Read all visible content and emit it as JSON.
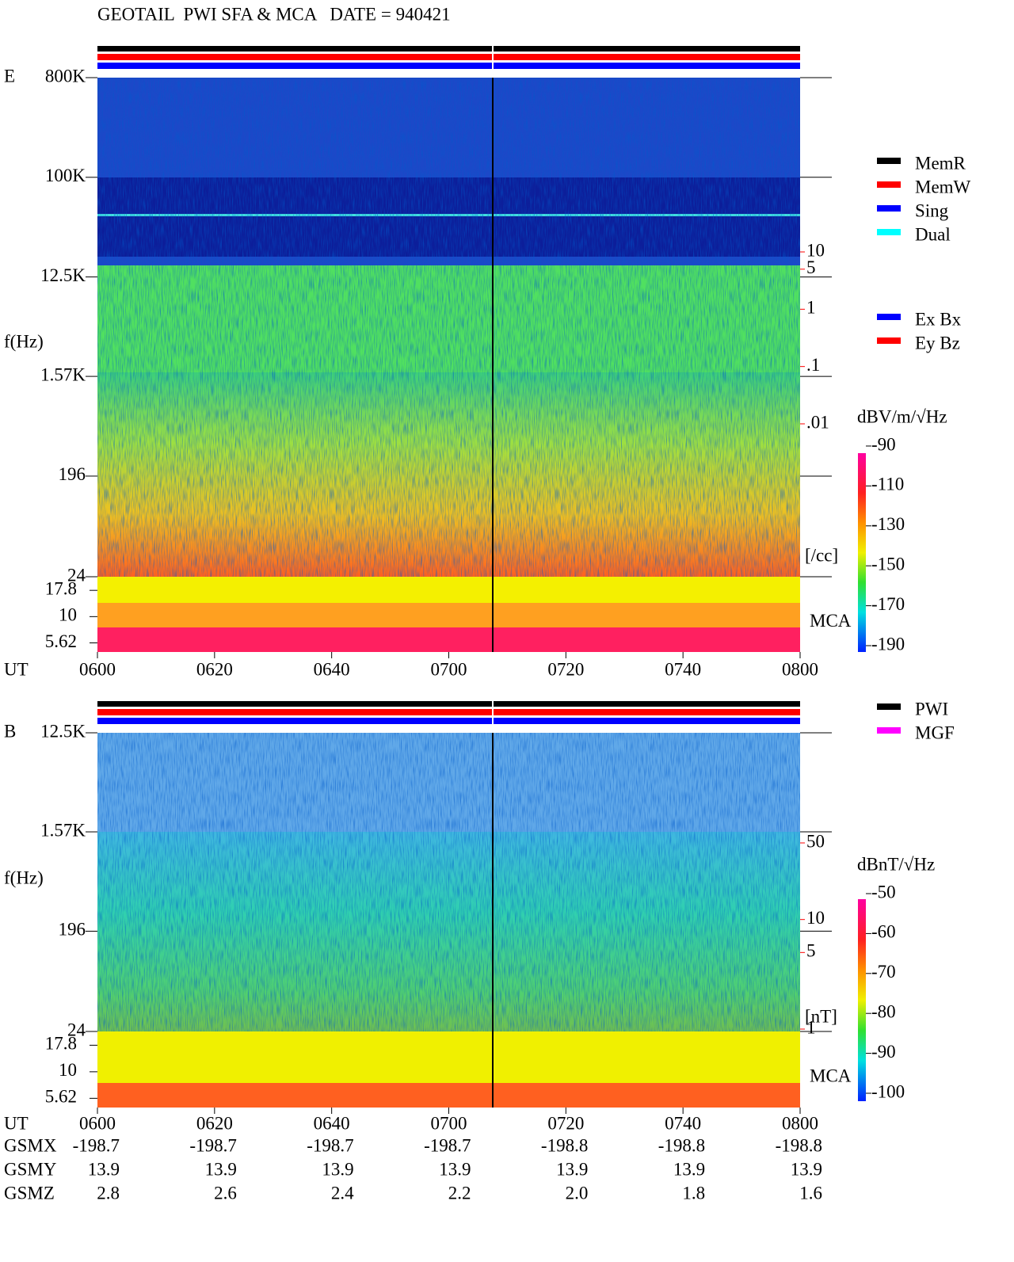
{
  "title": "GEOTAIL  PWI SFA & MCA   DATE = 940421",
  "chart_data": [
    {
      "type": "spectrogram",
      "panel_label": "E",
      "ylabel": "f(Hz)",
      "log_y": true,
      "ylim": [
        24,
        800000
      ],
      "yticks": [
        {
          "value": 800000,
          "label": "800K"
        },
        {
          "value": 100000,
          "label": "100K"
        },
        {
          "value": 12500,
          "label": "12.5K"
        },
        {
          "value": 1570,
          "label": "1.57K"
        },
        196,
        24
      ],
      "mca_label": "MCA",
      "mca_ylim": [
        4.6,
        24
      ],
      "mca_ticks": [
        17.8,
        10,
        5.62
      ],
      "density_unit": "[/cc]",
      "density_color": "#ff0000",
      "density_ylim": [
        0.01,
        10
      ],
      "density_ticks": [
        10,
        5,
        1,
        {
          "value": 0.1,
          "label": ".1"
        },
        {
          "value": 0.01,
          "label": ".01"
        }
      ],
      "colorbar_label": "dBV/m/√Hz",
      "colorbar_lim": [
        -190,
        -90
      ],
      "colorbar_ticks": [
        -90,
        -110,
        -130,
        -150,
        -170,
        -190
      ],
      "legend": [
        [
          {
            "name": "MemR",
            "color": "#000000"
          },
          {
            "name": "MemW",
            "color": "#ff0000"
          },
          {
            "name": "Sing",
            "color": "#0000ff"
          },
          {
            "name": "Dual",
            "color": "#00ffff"
          }
        ],
        [
          {
            "name": "Ex Bx",
            "color": "#0000ff"
          },
          {
            "name": "Ey Bz",
            "color": "#ff0000"
          }
        ]
      ],
      "xlabel": "UT",
      "time_ticks": [
        "0600",
        "0620",
        "0640",
        "0700",
        "0720",
        "0740",
        "0800"
      ]
    },
    {
      "type": "spectrogram",
      "panel_label": "B",
      "ylabel": "f(Hz)",
      "log_y": true,
      "ylim": [
        24,
        12500
      ],
      "yticks": [
        {
          "value": 12500,
          "label": "12.5K"
        },
        {
          "value": 1570,
          "label": "1.57K"
        },
        196,
        24
      ],
      "mca_label": "MCA",
      "mca_ylim": [
        4.6,
        24
      ],
      "mca_ticks": [
        17.8,
        10,
        5.62
      ],
      "density_unit": "[nT]",
      "density_color": "#ff0000",
      "density_ylim": [
        1,
        50
      ],
      "density_ticks": [
        50,
        10,
        5,
        1
      ],
      "colorbar_label": "dBnT/√Hz",
      "colorbar_lim": [
        -100,
        -50
      ],
      "colorbar_ticks": [
        -50,
        -60,
        -70,
        -80,
        -90,
        -100
      ],
      "legend": [
        [
          {
            "name": "PWI",
            "color": "#000000"
          },
          {
            "name": "MGF",
            "color": "#ff00ff"
          }
        ]
      ],
      "xlabel": "UT",
      "time_ticks": [
        "0600",
        "0620",
        "0640",
        "0700",
        "0720",
        "0740",
        "0800"
      ]
    }
  ],
  "orbit": [
    {
      "name": "GSMX",
      "values": [
        "-198.7",
        "-198.7",
        "-198.7",
        "-198.7",
        "-198.8",
        "-198.8",
        "-198.8"
      ]
    },
    {
      "name": "GSMY",
      "values": [
        "13.9",
        "13.9",
        "13.9",
        "13.9",
        "13.9",
        "13.9",
        "13.9"
      ]
    },
    {
      "name": "GSMZ",
      "values": [
        "2.8",
        "2.6",
        "2.4",
        "2.2",
        "2.0",
        "1.8",
        "1.6"
      ]
    }
  ]
}
